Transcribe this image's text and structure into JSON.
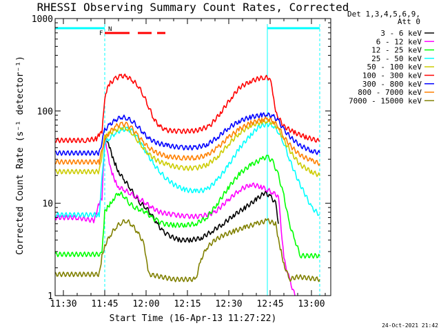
{
  "chart_data": {
    "type": "line",
    "title": "RHESSI Observing Summary Count Rates, Corrected",
    "xlabel": "Start Time (16-Apr-13 11:27:22)",
    "ylabel": "Corrected Count Rate (s⁻¹ detector⁻¹)",
    "yscale": "log",
    "ylim": [
      1,
      1000
    ],
    "xlim_minutes_after_1130": [
      -3,
      97
    ],
    "xticks": [
      {
        "label": "11:30",
        "minute": 0
      },
      {
        "label": "11:45",
        "minute": 15
      },
      {
        "label": "12:00",
        "minute": 30
      },
      {
        "label": "12:15",
        "minute": 45
      },
      {
        "label": "12:30",
        "minute": 60
      },
      {
        "label": "12:45",
        "minute": 75
      },
      {
        "label": "13:00",
        "minute": 90
      }
    ],
    "yticks": [
      {
        "label": "1",
        "value": 1
      },
      {
        "label": "10",
        "value": 10
      },
      {
        "label": "100",
        "value": 100
      },
      {
        "label": "1000",
        "value": 1000
      }
    ],
    "legend_header": [
      "Det 1,3,4,5,6,9,",
      "Att 0"
    ],
    "legend_position": "right",
    "night_intervals_minutes": [
      [
        -3,
        15
      ],
      [
        74,
        93
      ]
    ],
    "eclipse_lines_minutes": [
      15,
      74,
      93
    ],
    "flare_flag": {
      "label": "F",
      "segments_minutes": [
        [
          15,
          24
        ],
        [
          27,
          32
        ],
        [
          34,
          37
        ]
      ]
    },
    "saa_flag": {
      "label": "N"
    },
    "series": [
      {
        "name": "3 - 6 keV",
        "color": "#000000",
        "points": [
          [
            15,
            48
          ],
          [
            16,
            45
          ],
          [
            17,
            38
          ],
          [
            18,
            30
          ],
          [
            19,
            26
          ],
          [
            20,
            22
          ],
          [
            22,
            18
          ],
          [
            24,
            15
          ],
          [
            26,
            12
          ],
          [
            28,
            10
          ],
          [
            30,
            9
          ],
          [
            32,
            7.5
          ],
          [
            34,
            6
          ],
          [
            36,
            5
          ],
          [
            38,
            4.5
          ],
          [
            42,
            4
          ],
          [
            46,
            4
          ],
          [
            50,
            4.2
          ],
          [
            54,
            5
          ],
          [
            58,
            6
          ],
          [
            62,
            7.5
          ],
          [
            66,
            9
          ],
          [
            70,
            11
          ],
          [
            73,
            13
          ],
          [
            75,
            12
          ],
          [
            77,
            10
          ],
          [
            78,
            6
          ]
        ]
      },
      {
        "name": "6 - 12 keV",
        "color": "#ff00ff",
        "points": [
          [
            -3,
            7
          ],
          [
            5,
            7
          ],
          [
            11,
            6.5
          ],
          [
            12,
            8
          ],
          [
            13,
            10
          ],
          [
            14,
            11
          ],
          [
            15,
            50
          ],
          [
            16,
            35
          ],
          [
            17,
            24
          ],
          [
            18,
            20
          ],
          [
            19,
            17
          ],
          [
            20,
            15
          ],
          [
            22,
            14
          ],
          [
            24,
            13
          ],
          [
            26,
            12
          ],
          [
            28,
            11
          ],
          [
            30,
            10
          ],
          [
            32,
            9
          ],
          [
            35,
            8
          ],
          [
            40,
            7.5
          ],
          [
            45,
            7.2
          ],
          [
            50,
            7.2
          ],
          [
            55,
            8
          ],
          [
            60,
            11
          ],
          [
            64,
            14
          ],
          [
            68,
            16
          ],
          [
            72,
            15
          ],
          [
            74,
            14
          ],
          [
            76,
            13
          ],
          [
            78,
            12
          ],
          [
            80,
            2.5
          ],
          [
            82,
            1.5
          ],
          [
            84,
            1
          ]
        ]
      },
      {
        "name": "12 - 25 keV",
        "color": "#00ff00",
        "points": [
          [
            -3,
            2.8
          ],
          [
            14,
            2.8
          ],
          [
            15,
            8
          ],
          [
            16,
            9
          ],
          [
            17,
            10
          ],
          [
            18,
            11
          ],
          [
            20,
            13
          ],
          [
            22,
            12
          ],
          [
            24,
            10
          ],
          [
            26,
            9
          ],
          [
            28,
            8.5
          ],
          [
            30,
            8
          ],
          [
            32,
            7
          ],
          [
            34,
            6.5
          ],
          [
            36,
            6
          ],
          [
            40,
            5.8
          ],
          [
            44,
            5.8
          ],
          [
            48,
            6
          ],
          [
            52,
            7
          ],
          [
            56,
            10
          ],
          [
            60,
            15
          ],
          [
            64,
            21
          ],
          [
            68,
            26
          ],
          [
            72,
            30
          ],
          [
            74,
            32
          ],
          [
            76,
            28
          ],
          [
            78,
            20
          ],
          [
            80,
            12
          ],
          [
            82,
            6
          ],
          [
            84,
            4
          ],
          [
            86,
            2.7
          ],
          [
            93,
            2.7
          ]
        ]
      },
      {
        "name": "25 - 50 keV",
        "color": "#00ffff",
        "points": [
          [
            -3,
            7.5
          ],
          [
            13,
            7.5
          ],
          [
            15,
            45
          ],
          [
            17,
            52
          ],
          [
            19,
            58
          ],
          [
            21,
            62
          ],
          [
            23,
            64
          ],
          [
            25,
            60
          ],
          [
            27,
            50
          ],
          [
            29,
            40
          ],
          [
            31,
            32
          ],
          [
            33,
            26
          ],
          [
            35,
            22
          ],
          [
            37,
            19
          ],
          [
            40,
            16
          ],
          [
            44,
            14
          ],
          [
            48,
            13.5
          ],
          [
            52,
            14
          ],
          [
            56,
            18
          ],
          [
            60,
            26
          ],
          [
            64,
            40
          ],
          [
            68,
            55
          ],
          [
            71,
            68
          ],
          [
            74,
            72
          ],
          [
            76,
            70
          ],
          [
            78,
            60
          ],
          [
            80,
            45
          ],
          [
            82,
            30
          ],
          [
            85,
            18
          ],
          [
            88,
            12
          ],
          [
            90,
            9
          ],
          [
            93,
            7.5
          ]
        ]
      },
      {
        "name": "50 - 100 keV",
        "color": "#cccc00",
        "points": [
          [
            -3,
            22
          ],
          [
            13,
            22
          ],
          [
            15,
            52
          ],
          [
            17,
            58
          ],
          [
            19,
            62
          ],
          [
            21,
            66
          ],
          [
            23,
            65
          ],
          [
            25,
            58
          ],
          [
            27,
            48
          ],
          [
            29,
            40
          ],
          [
            31,
            34
          ],
          [
            34,
            29
          ],
          [
            38,
            26
          ],
          [
            43,
            24
          ],
          [
            48,
            24
          ],
          [
            52,
            26
          ],
          [
            56,
            32
          ],
          [
            60,
            44
          ],
          [
            64,
            58
          ],
          [
            68,
            70
          ],
          [
            72,
            76
          ],
          [
            74,
            78
          ],
          [
            76,
            74
          ],
          [
            78,
            64
          ],
          [
            80,
            48
          ],
          [
            83,
            34
          ],
          [
            86,
            26
          ],
          [
            90,
            22
          ],
          [
            93,
            20
          ]
        ]
      },
      {
        "name": "100 - 300 keV",
        "color": "#ff0000",
        "points": [
          [
            -3,
            48
          ],
          [
            8,
            48
          ],
          [
            12,
            50
          ],
          [
            13,
            55
          ],
          [
            14,
            58
          ],
          [
            15,
            130
          ],
          [
            16,
            175
          ],
          [
            17,
            200
          ],
          [
            19,
            225
          ],
          [
            21,
            240
          ],
          [
            23,
            235
          ],
          [
            25,
            215
          ],
          [
            27,
            190
          ],
          [
            29,
            150
          ],
          [
            31,
            110
          ],
          [
            33,
            80
          ],
          [
            35,
            68
          ],
          [
            37,
            62
          ],
          [
            42,
            60
          ],
          [
            48,
            61
          ],
          [
            53,
            68
          ],
          [
            57,
            95
          ],
          [
            61,
            140
          ],
          [
            64,
            180
          ],
          [
            68,
            210
          ],
          [
            71,
            225
          ],
          [
            73,
            230
          ],
          [
            75,
            228
          ],
          [
            76,
            150
          ],
          [
            77,
            95
          ],
          [
            80,
            68
          ],
          [
            84,
            58
          ],
          [
            88,
            52
          ],
          [
            93,
            47
          ]
        ]
      },
      {
        "name": "300 - 800 keV",
        "color": "#0000ff",
        "points": [
          [
            -3,
            35
          ],
          [
            13,
            35
          ],
          [
            15,
            62
          ],
          [
            17,
            72
          ],
          [
            19,
            80
          ],
          [
            21,
            86
          ],
          [
            23,
            84
          ],
          [
            25,
            78
          ],
          [
            27,
            68
          ],
          [
            29,
            58
          ],
          [
            31,
            50
          ],
          [
            34,
            45
          ],
          [
            38,
            42
          ],
          [
            43,
            40
          ],
          [
            48,
            40
          ],
          [
            52,
            43
          ],
          [
            56,
            52
          ],
          [
            60,
            66
          ],
          [
            64,
            78
          ],
          [
            68,
            86
          ],
          [
            72,
            90
          ],
          [
            74,
            91
          ],
          [
            76,
            88
          ],
          [
            78,
            78
          ],
          [
            80,
            62
          ],
          [
            83,
            50
          ],
          [
            86,
            42
          ],
          [
            90,
            37
          ],
          [
            93,
            35
          ]
        ]
      },
      {
        "name": "800 - 7000 keV",
        "color": "#ff8000",
        "points": [
          [
            -3,
            28
          ],
          [
            13,
            28
          ],
          [
            15,
            50
          ],
          [
            17,
            60
          ],
          [
            19,
            68
          ],
          [
            21,
            72
          ],
          [
            23,
            71
          ],
          [
            25,
            64
          ],
          [
            27,
            54
          ],
          [
            29,
            46
          ],
          [
            31,
            40
          ],
          [
            34,
            35
          ],
          [
            38,
            32
          ],
          [
            43,
            31
          ],
          [
            48,
            31
          ],
          [
            52,
            33
          ],
          [
            56,
            40
          ],
          [
            60,
            52
          ],
          [
            64,
            64
          ],
          [
            68,
            74
          ],
          [
            72,
            80
          ],
          [
            74,
            82
          ],
          [
            76,
            78
          ],
          [
            78,
            68
          ],
          [
            80,
            52
          ],
          [
            83,
            40
          ],
          [
            86,
            33
          ],
          [
            90,
            29
          ],
          [
            93,
            27
          ]
        ]
      },
      {
        "name": "7000 - 15000 keV",
        "color": "#808000",
        "points": [
          [
            -3,
            1.7
          ],
          [
            13,
            1.7
          ],
          [
            14,
            2.7
          ],
          [
            15,
            3.5
          ],
          [
            17,
            4.5
          ],
          [
            19,
            5.5
          ],
          [
            21,
            6.2
          ],
          [
            23,
            6.5
          ],
          [
            25,
            5.8
          ],
          [
            27,
            4.8
          ],
          [
            29,
            3.8
          ],
          [
            30,
            2.5
          ],
          [
            31,
            1.7
          ],
          [
            40,
            1.5
          ],
          [
            48,
            1.5
          ],
          [
            50,
            2.5
          ],
          [
            52,
            3.3
          ],
          [
            55,
            4
          ],
          [
            58,
            4.5
          ],
          [
            62,
            5
          ],
          [
            66,
            5.5
          ],
          [
            70,
            6
          ],
          [
            74,
            6.5
          ],
          [
            77,
            6
          ],
          [
            78,
            4
          ],
          [
            79,
            3
          ],
          [
            80,
            2.2
          ],
          [
            82,
            1.5
          ],
          [
            85,
            1.6
          ],
          [
            93,
            1.5
          ]
        ]
      }
    ]
  },
  "timestamp": "24-Oct-2021 21:42"
}
